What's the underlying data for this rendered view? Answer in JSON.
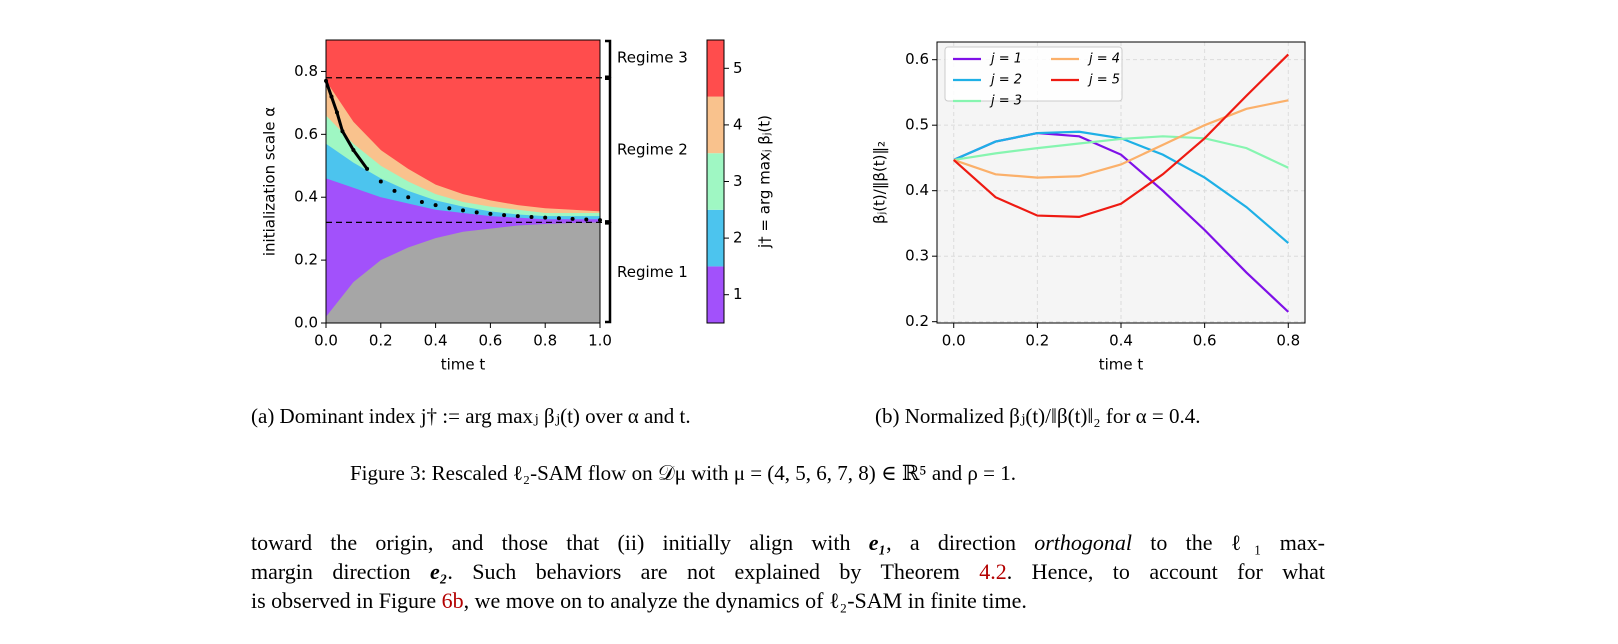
{
  "chart_data": [
    {
      "type": "region",
      "xlabel": "time t",
      "ylabel": "initialization scale α",
      "xlim": [
        0,
        1
      ],
      "ylim": [
        0,
        0.9
      ],
      "xticks": [
        {
          "value": 0,
          "label": "0.0"
        },
        0.2,
        0.4,
        0.6,
        0.8,
        {
          "value": 1,
          "label": "1.0"
        }
      ],
      "yticks": [
        {
          "value": 0,
          "label": "0.0"
        },
        0.2,
        0.4,
        0.6,
        0.8
      ],
      "x": [
        0,
        0.1,
        0.2,
        0.3,
        0.4,
        0.5,
        0.6,
        0.7,
        0.8,
        0.9,
        1.0
      ],
      "background": "#ff4d4d",
      "series": [
        {
          "color": "#a6a6a6",
          "values": [
            0.02,
            0.13,
            0.2,
            0.24,
            0.27,
            0.29,
            0.3,
            0.31,
            0.315,
            0.318,
            0.32
          ]
        },
        {
          "color": "#a251fb",
          "values": [
            0.46,
            0.43,
            0.4,
            0.38,
            0.36,
            0.35,
            0.34,
            0.335,
            0.33,
            0.33,
            0.33
          ]
        },
        {
          "color": "#4cc4ee",
          "values": [
            0.57,
            0.51,
            0.46,
            0.42,
            0.39,
            0.37,
            0.355,
            0.345,
            0.34,
            0.34,
            0.34
          ]
        },
        {
          "color": "#9ff7c3",
          "values": [
            0.66,
            0.57,
            0.5,
            0.45,
            0.41,
            0.385,
            0.37,
            0.36,
            0.35,
            0.35,
            0.35
          ]
        },
        {
          "color": "#f9c28d",
          "values": [
            0.77,
            0.64,
            0.55,
            0.49,
            0.44,
            0.41,
            0.39,
            0.375,
            0.365,
            0.36,
            0.355
          ]
        }
      ],
      "curve": {
        "x": [
          0,
          0.02,
          0.04,
          0.06,
          0.1,
          0.15,
          0.2,
          0.25,
          0.3,
          0.35,
          0.4,
          0.45,
          0.5,
          0.55,
          0.6,
          0.65,
          0.7,
          0.75,
          0.8,
          0.85,
          0.9,
          0.95,
          1.0
        ],
        "values": [
          0.77,
          0.72,
          0.67,
          0.61,
          0.55,
          0.49,
          0.45,
          0.42,
          0.4,
          0.385,
          0.375,
          0.365,
          0.358,
          0.352,
          0.347,
          0.343,
          0.34,
          0.337,
          0.335,
          0.333,
          0.331,
          0.329,
          0.327
        ]
      },
      "hlines": [
        0.32,
        0.78
      ],
      "regimes": [
        {
          "label": "Regime 3",
          "range": [
            0.78,
            0.9
          ]
        },
        {
          "label": "Regime 2",
          "range": [
            0.32,
            0.78
          ]
        },
        {
          "label": "Regime 1",
          "range": [
            0,
            0.32
          ]
        }
      ],
      "colorbar": {
        "label": "j† = arg maxⱼ βⱼ(t)",
        "clim": [
          0.5,
          5.5
        ],
        "ticks": [
          1,
          2,
          3,
          4,
          5
        ]
      }
    },
    {
      "type": "line",
      "xlabel": "time t",
      "ylabel": "βⱼ(t)/‖β(t)‖₂",
      "xlim": [
        -0.04,
        0.84
      ],
      "ylim": [
        0.198,
        0.627
      ],
      "xticks": [
        {
          "value": 0,
          "label": "0.0"
        },
        0.2,
        0.4,
        0.6,
        0.8
      ],
      "yticks": [
        0.2,
        0.3,
        0.4,
        0.5,
        0.6
      ],
      "grid": true,
      "legend": "upper left",
      "x": [
        0,
        0.1,
        0.2,
        0.3,
        0.4,
        0.5,
        0.6,
        0.7,
        0.8
      ],
      "series": [
        {
          "name": "j = 1",
          "color": "#7f10e8",
          "values": [
            0.447,
            0.475,
            0.488,
            0.483,
            0.455,
            0.4,
            0.34,
            0.275,
            0.215
          ]
        },
        {
          "name": "j = 2",
          "color": "#1eb0e6",
          "values": [
            0.447,
            0.475,
            0.488,
            0.49,
            0.48,
            0.455,
            0.42,
            0.375,
            0.32
          ]
        },
        {
          "name": "j = 3",
          "color": "#86f5b0",
          "values": [
            0.447,
            0.457,
            0.465,
            0.472,
            0.479,
            0.483,
            0.48,
            0.465,
            0.435
          ]
        },
        {
          "name": "j = 4",
          "color": "#fbb06a",
          "values": [
            0.447,
            0.425,
            0.42,
            0.422,
            0.44,
            0.47,
            0.5,
            0.525,
            0.538
          ]
        },
        {
          "name": "j = 5",
          "color": "#ee1a12",
          "values": [
            0.447,
            0.39,
            0.362,
            0.36,
            0.38,
            0.425,
            0.48,
            0.545,
            0.608
          ]
        }
      ]
    }
  ],
  "captions": [
    "(a) Dominant index j† := arg maxⱼ βⱼ(t) over α and t.",
    "(b) Normalized βⱼ(t)/‖β(t)‖₂ for α = 0.4."
  ],
  "figure_caption": "Figure 3: Rescaled ℓ₂-SAM flow on 𝒟μ with μ = (4, 5, 6, 7, 8) ∈ ℝ⁵ and ρ = 1.",
  "paragraph": [
    [
      "toward the origin, and those that (ii) initially align with ",
      "e₁",
      ", a direction ",
      "orthogonal",
      " to the ℓ₁ max-"
    ],
    [
      "margin direction ",
      "e₂",
      ". Such behaviors are not explained by Theorem ",
      "4.2",
      ". Hence, to account for what"
    ],
    [
      "is observed in Figure ",
      "6b",
      ", we move on to analyze the dynamics of ℓ₂-SAM in finite time."
    ]
  ]
}
